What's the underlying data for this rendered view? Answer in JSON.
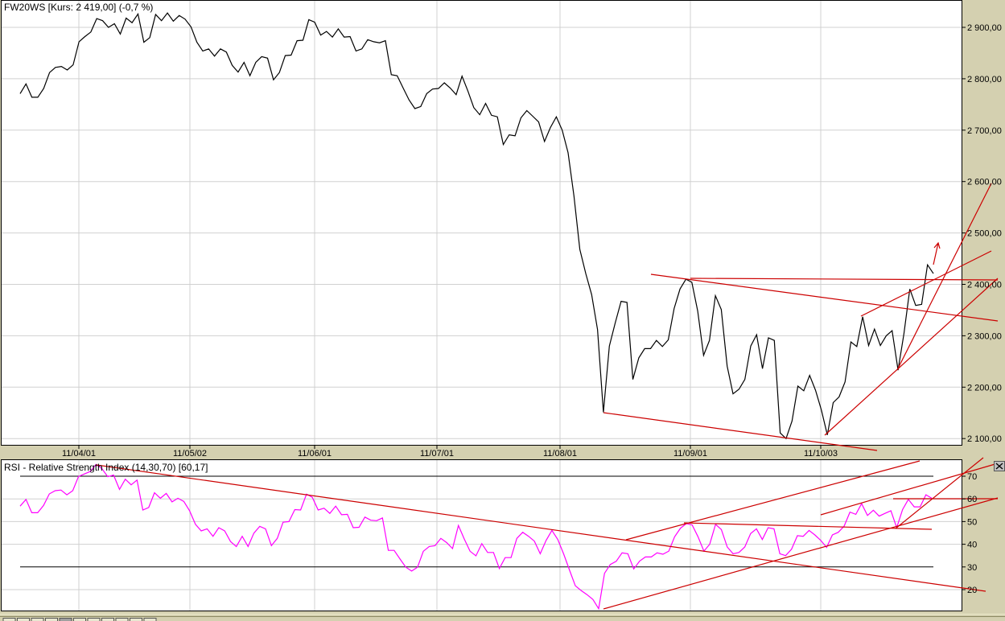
{
  "colors": {
    "price_line": "#000000",
    "rsi_line": "#ff00ff",
    "trendline": "#cc0000",
    "grid": "#d0d0d0",
    "background": "#d4d0b0",
    "panel": "#ffffff"
  },
  "chart_data": [
    {
      "type": "line",
      "title": "FW20WS [Kurs: 2 419,00] (-0,7 %)",
      "ylim": [
        2100,
        2900
      ],
      "y_ticks": [
        "2 900,00",
        "2 800,00",
        "2 700,00",
        "2 600,00",
        "2 500,00",
        "2 400,00",
        "2 300,00",
        "2 200,00",
        "2 100,00"
      ],
      "x_ticks": [
        "11/04/01",
        "11/05/02",
        "11/06/01",
        "11/07/01",
        "11/08/01",
        "11/09/01",
        "11/10/03"
      ],
      "grid": true,
      "values": [
        2771,
        2790,
        2764,
        2764,
        2781,
        2812,
        2822,
        2824,
        2817,
        2827,
        2872,
        2882,
        2891,
        2917,
        2913,
        2900,
        2907,
        2887,
        2918,
        2909,
        2926,
        2871,
        2880,
        2925,
        2913,
        2928,
        2912,
        2923,
        2916,
        2901,
        2871,
        2854,
        2858,
        2844,
        2858,
        2852,
        2826,
        2813,
        2832,
        2806,
        2832,
        2843,
        2840,
        2798,
        2812,
        2845,
        2846,
        2874,
        2875,
        2915,
        2910,
        2885,
        2892,
        2881,
        2897,
        2881,
        2882,
        2854,
        2858,
        2876,
        2872,
        2870,
        2874,
        2808,
        2806,
        2782,
        2759,
        2742,
        2746,
        2771,
        2780,
        2781,
        2792,
        2782,
        2769,
        2805,
        2776,
        2744,
        2730,
        2752,
        2729,
        2726,
        2672,
        2691,
        2689,
        2724,
        2738,
        2727,
        2716,
        2678,
        2705,
        2726,
        2700,
        2656,
        2572,
        2468,
        2421,
        2380,
        2312,
        2151,
        2280,
        2325,
        2367,
        2365,
        2215,
        2257,
        2275,
        2275,
        2291,
        2279,
        2292,
        2353,
        2391,
        2410,
        2404,
        2348,
        2262,
        2291,
        2378,
        2351,
        2241,
        2187,
        2196,
        2215,
        2280,
        2302,
        2236,
        2296,
        2291,
        2111,
        2100,
        2134,
        2202,
        2193,
        2223,
        2194,
        2155,
        2107,
        2170,
        2181,
        2210,
        2288,
        2279,
        2337,
        2281,
        2313,
        2281,
        2300,
        2310,
        2233,
        2304,
        2391,
        2359,
        2361,
        2438,
        2421
      ]
    },
    {
      "type": "line",
      "title": "RSI - Relative Strength Index (14,30,70) [60,17]",
      "ylim": [
        10,
        77
      ],
      "y_ticks": [
        "70",
        "60",
        "50",
        "40",
        "30",
        "20"
      ],
      "reference_lines": [
        70,
        30
      ],
      "grid": true,
      "values": [
        56.8,
        59.8,
        53.9,
        53.9,
        57.1,
        62.2,
        63.6,
        63.9,
        61.8,
        63.6,
        69.9,
        71,
        72.1,
        75.2,
        73.3,
        69.8,
        70.5,
        64.2,
        68.7,
        66.2,
        68.3,
        55.1,
        56.2,
        62.7,
        60.3,
        62.4,
        58.7,
        60.3,
        58.9,
        54.8,
        48.8,
        45.9,
        46.8,
        43.5,
        47.3,
        45.9,
        41.2,
        39,
        43.5,
        39,
        44.9,
        47.9,
        46.8,
        39.4,
        42.6,
        49.7,
        50,
        55.3,
        55.1,
        62.1,
        60.7,
        55.1,
        55.9,
        53.6,
        56.8,
        53,
        53.2,
        47.3,
        47.5,
        52,
        50.6,
        50.4,
        51.6,
        37.3,
        37.3,
        33.5,
        29.9,
        28.2,
        29.9,
        36.9,
        39,
        39.4,
        42.6,
        40.7,
        38.1,
        48.3,
        42.3,
        36.9,
        34.9,
        40.3,
        36.4,
        36.4,
        29.3,
        34.1,
        34.1,
        42.6,
        45.3,
        43.5,
        41.4,
        35.8,
        41.7,
        46.1,
        42.1,
        35.8,
        28.7,
        21.7,
        19.6,
        17.8,
        15.7,
        11.6,
        27.2,
        31.1,
        32.5,
        36.2,
        35.8,
        29.1,
        32.6,
        34.4,
        34.4,
        36.2,
        35.6,
        37,
        43.3,
        47.1,
        49.1,
        48.5,
        43.3,
        37,
        40,
        48.8,
        46.5,
        38.8,
        35.8,
        36.4,
        38.8,
        44.7,
        46.8,
        42.1,
        47.3,
        46.8,
        35.8,
        35,
        37.8,
        43.8,
        43.5,
        46.1,
        44.1,
        41.7,
        38.6,
        44.1,
        45.3,
        48,
        54.2,
        53.2,
        57.9,
        52.7,
        55,
        52.4,
        53.6,
        54.8,
        47.3,
        55.3,
        59.8,
        56.5,
        56.5,
        61.8,
        60.3
      ]
    }
  ],
  "icons": {
    "close_panel": "close-icon"
  }
}
